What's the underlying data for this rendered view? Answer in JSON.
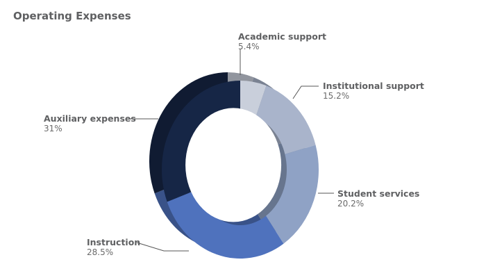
{
  "title": "Operating Expenses",
  "chart_data": {
    "type": "pie",
    "title": "Operating Expenses",
    "slices": [
      {
        "label": "Academic support",
        "value": 5.4,
        "value_label": "5.4%",
        "color": "#c9cfdb"
      },
      {
        "label": "Institutional support",
        "value": 15.2,
        "value_label": "15.2%",
        "color": "#a9b4cb"
      },
      {
        "label": "Student services",
        "value": 20.2,
        "value_label": "20.2%",
        "color": "#8fa2c5"
      },
      {
        "label": "Instruction",
        "value": 28.5,
        "value_label": "28.5%",
        "color": "#4f72bd"
      },
      {
        "label": "Auxiliary expenses",
        "value": 31,
        "value_label": "31%",
        "color": "#162646"
      }
    ],
    "style": "3d-donut",
    "legend": "none"
  }
}
